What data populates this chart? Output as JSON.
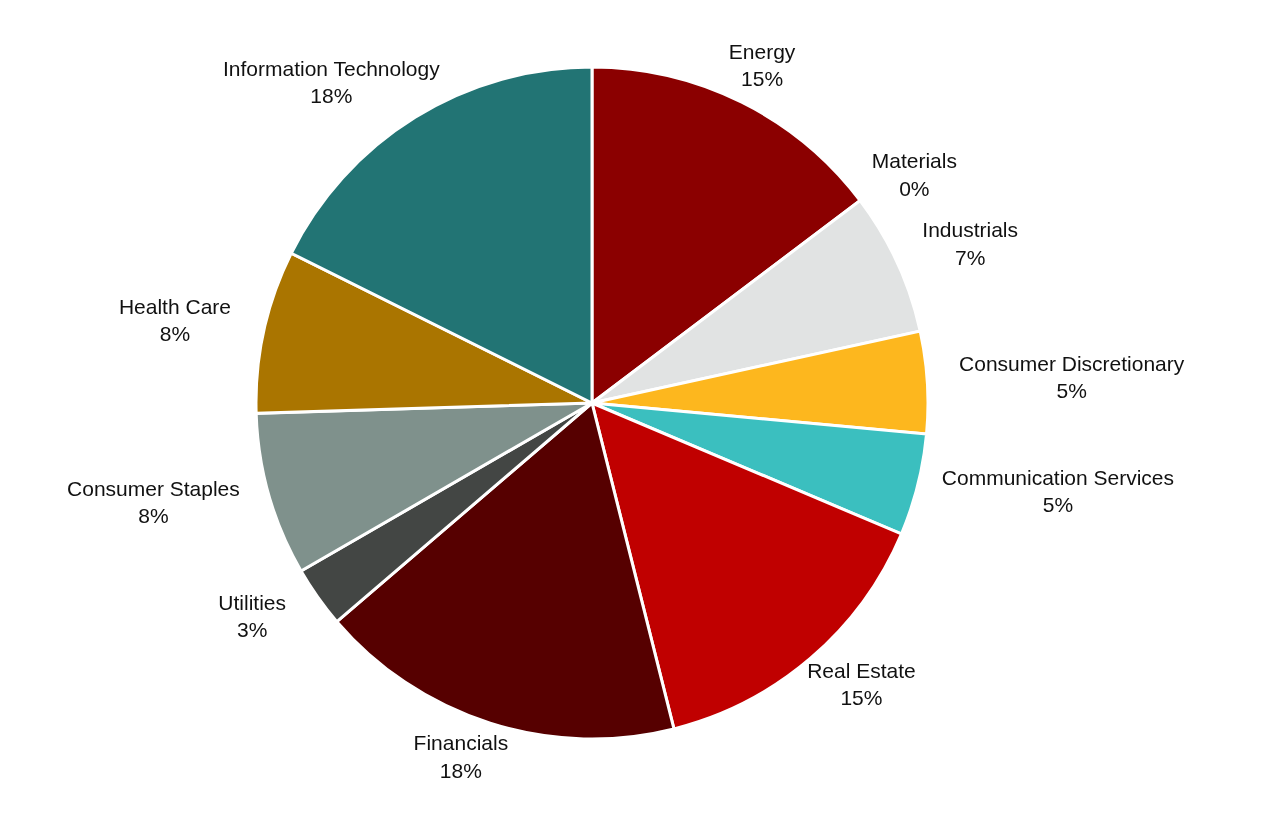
{
  "chart_data": {
    "type": "pie",
    "categories": [
      "Energy",
      "Materials",
      "Industrials",
      "Consumer Discretionary",
      "Communication Services",
      "Real Estate",
      "Financials",
      "Utilities",
      "Consumer Staples",
      "Health Care",
      "Information Technology"
    ],
    "values": [
      15,
      0,
      7,
      5,
      5,
      15,
      18,
      3,
      8,
      8,
      18
    ],
    "colors": [
      "#8b0000",
      "#c9cbcb",
      "#e1e3e3",
      "#fdb71e",
      "#3bbfbf",
      "#c00000",
      "#560000",
      "#434644",
      "#7f918c",
      "#aa7500",
      "#227474"
    ],
    "value_labels": [
      "15%",
      "0%",
      "7%",
      "5%",
      "5%",
      "15%",
      "18%",
      "3%",
      "8%",
      "8%",
      "18%"
    ]
  }
}
